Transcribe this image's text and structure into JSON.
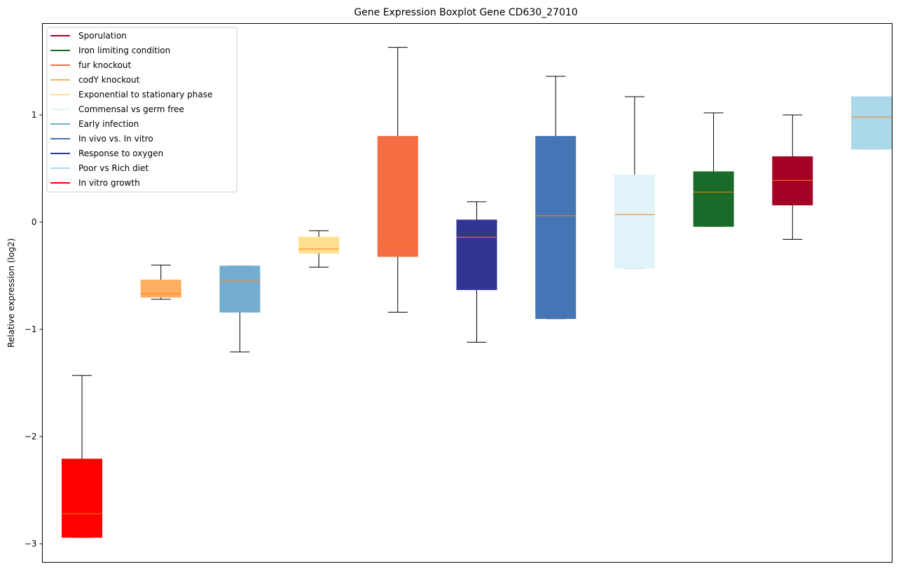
{
  "chart_data": {
    "type": "box",
    "title": "Gene Expression Boxplot Gene CD630_27010",
    "xlabel": "",
    "ylabel": "Relative expression (log2)",
    "ylim": [
      -3.16,
      1.87
    ],
    "yticks": [
      1,
      0,
      -1,
      -2,
      -3
    ],
    "ytick_labels": [
      "1",
      "0",
      "−1",
      "−2",
      "−3"
    ],
    "grid": false,
    "legend_position": "top-left",
    "median_color": "#ff7f0e",
    "series": [
      {
        "name": "In vitro growth",
        "color": "#ff0000",
        "whislo": -2.94,
        "q1": -2.94,
        "med": -2.72,
        "q3": -2.21,
        "whishi": -1.43
      },
      {
        "name": "codY knockout",
        "color": "#fdae61",
        "whislo": -0.72,
        "q1": -0.7,
        "med": -0.67,
        "q3": -0.54,
        "whishi": -0.4
      },
      {
        "name": "Early infection",
        "color": "#74add1",
        "whislo": -1.21,
        "q1": -0.84,
        "med": -0.55,
        "q3": -0.41,
        "whishi": -0.41
      },
      {
        "name": "Exponential to stationary phase",
        "color": "#fee090",
        "whislo": -0.42,
        "q1": -0.29,
        "med": -0.25,
        "q3": -0.14,
        "whishi": -0.08
      },
      {
        "name": "fur knockout",
        "color": "#f46d43",
        "whislo": -0.84,
        "q1": -0.32,
        "med": -0.2,
        "q3": 0.8,
        "whishi": 1.63
      },
      {
        "name": "Response to oxygen",
        "color": "#313695",
        "whislo": -1.12,
        "q1": -0.63,
        "med": -0.14,
        "q3": 0.02,
        "whishi": 0.19
      },
      {
        "name": "In vivo vs. In vitro",
        "color": "#4575b4",
        "whislo": -0.9,
        "q1": -0.9,
        "med": 0.06,
        "q3": 0.8,
        "whishi": 1.36
      },
      {
        "name": "Commensal vs germ free",
        "color": "#e0f3f8",
        "whislo": -0.43,
        "q1": -0.43,
        "med": 0.07,
        "q3": 0.44,
        "whishi": 1.17
      },
      {
        "name": "Iron limiting condition",
        "color": "#1a6b2a",
        "whislo": -0.04,
        "q1": -0.04,
        "med": 0.28,
        "q3": 0.47,
        "whishi": 1.02
      },
      {
        "name": "Sporulation",
        "color": "#a50026",
        "whislo": -0.16,
        "q1": 0.16,
        "med": 0.39,
        "q3": 0.61,
        "whishi": 1.0
      },
      {
        "name": "Poor vs Rich diet",
        "color": "#abd9e9",
        "whislo": 0.68,
        "q1": 0.68,
        "med": 0.98,
        "q3": 1.17,
        "whishi": 1.17
      }
    ],
    "legend": [
      {
        "label": "Sporulation",
        "color": "#a50026"
      },
      {
        "label": "Iron limiting condition",
        "color": "#1a6b2a"
      },
      {
        "label": "fur knockout",
        "color": "#f46d43"
      },
      {
        "label": "codY knockout",
        "color": "#fdae61"
      },
      {
        "label": "Exponential to stationary phase",
        "color": "#fee090"
      },
      {
        "label": "Commensal vs germ free",
        "color": "#e0f3f8"
      },
      {
        "label": "Early infection",
        "color": "#74add1"
      },
      {
        "label": "In vivo vs. In vitro",
        "color": "#4575b4"
      },
      {
        "label": "Response to oxygen",
        "color": "#313695"
      },
      {
        "label": "Poor vs Rich diet",
        "color": "#abd9e9"
      },
      {
        "label": "In vitro growth",
        "color": "#ff0000"
      }
    ]
  }
}
